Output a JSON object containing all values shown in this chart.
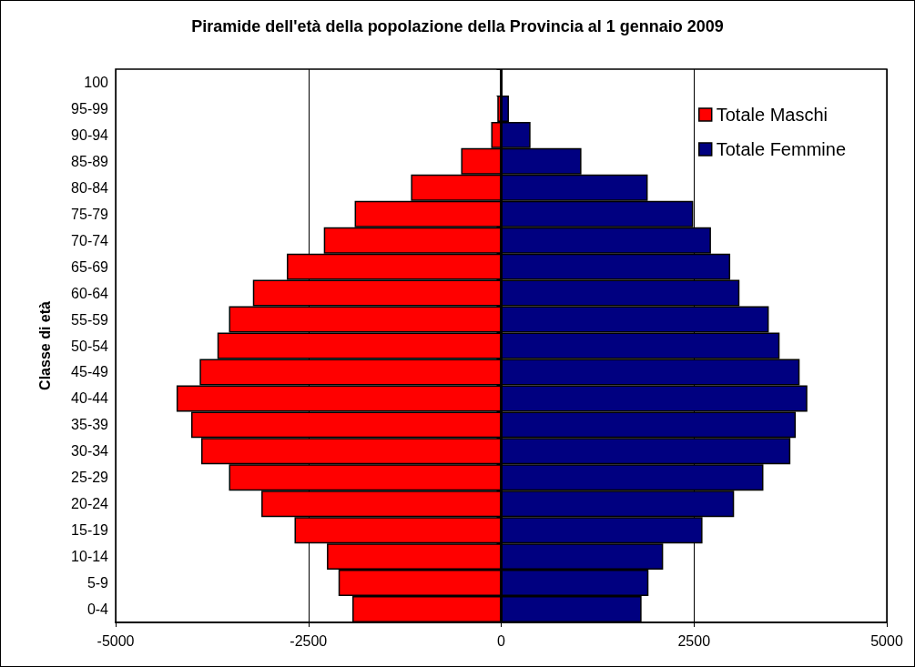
{
  "chart_data": {
    "type": "bar",
    "orientation": "horizontal",
    "title": "Piramide dell'età della popolazione della Provincia al 1 gennaio 2009",
    "ylabel": "Classe di età",
    "categories": [
      "100",
      "95-99",
      "90-94",
      "85-89",
      "80-84",
      "75-79",
      "70-74",
      "65-69",
      "60-64",
      "55-59",
      "50-54",
      "45-49",
      "40-44",
      "35-39",
      "30-34",
      "25-29",
      "20-24",
      "15-19",
      "10-14",
      "5-9",
      "0-4"
    ],
    "series": [
      {
        "name": "Totale Maschi",
        "color": "#ff0000",
        "values": [
          null,
          -50,
          -130,
          -520,
          -1170,
          -1900,
          -2300,
          -2780,
          -3220,
          -3530,
          -3680,
          -3910,
          -4210,
          -4020,
          -3890,
          -3530,
          -3110,
          -2680,
          -2260,
          -2110,
          -1930
        ]
      },
      {
        "name": "Totale Femmine",
        "color": "#000080",
        "values": [
          null,
          100,
          380,
          1040,
          1900,
          2490,
          2720,
          2970,
          3090,
          3470,
          3610,
          3870,
          3970,
          3820,
          3750,
          3400,
          3020,
          2610,
          2100,
          1910,
          1820
        ]
      }
    ],
    "xlim": [
      -5000,
      5000
    ],
    "xticks": [
      -5000,
      -2500,
      0,
      2500,
      5000
    ],
    "stacked": true,
    "grid": "x",
    "legend": "top right"
  }
}
